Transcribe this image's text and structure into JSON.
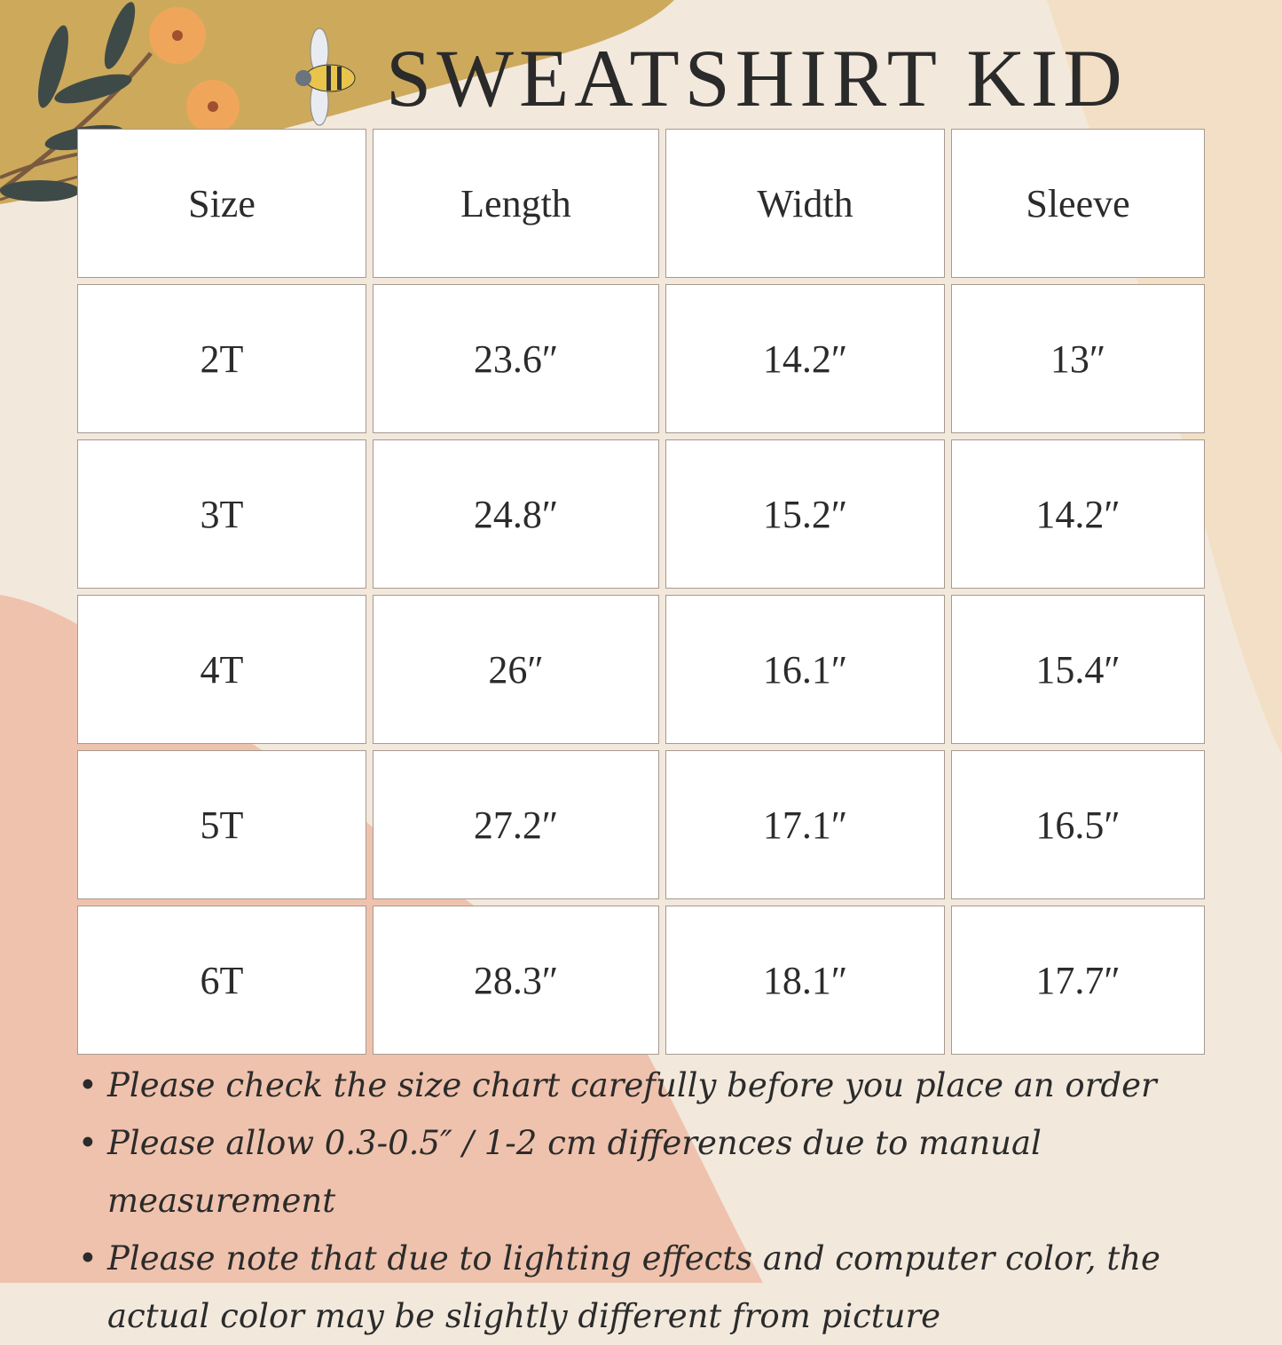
{
  "title": "SWEATSHIRT KID",
  "decorations": [
    "flower-branch-illustration",
    "bee-illustration"
  ],
  "colors": {
    "mustard": "#c9a24e",
    "peach": "#eeb59e",
    "cream": "#f2e8dc",
    "text": "#2b2b2b",
    "flower": "#f0a65a",
    "leaf": "#3e4a47"
  },
  "table": {
    "headers": [
      "Size",
      "Length",
      "Width",
      "Sleeve"
    ],
    "rows": [
      [
        "2T",
        "23.6″",
        "14.2″",
        "13″"
      ],
      [
        "3T",
        "24.8″",
        "15.2″",
        "14.2″"
      ],
      [
        "4T",
        "26″",
        "16.1″",
        "15.4″"
      ],
      [
        "5T",
        "27.2″",
        "17.1″",
        "16.5″"
      ],
      [
        "6T",
        "28.3″",
        "18.1″",
        "17.7″"
      ]
    ]
  },
  "notes": [
    "Please check the size chart carefully before you place an order",
    "Please allow 0.3-0.5″ / 1-2 cm differences due to manual measurement",
    "Please note that due to lighting effects and computer color, the actual color may be slightly different from picture"
  ]
}
